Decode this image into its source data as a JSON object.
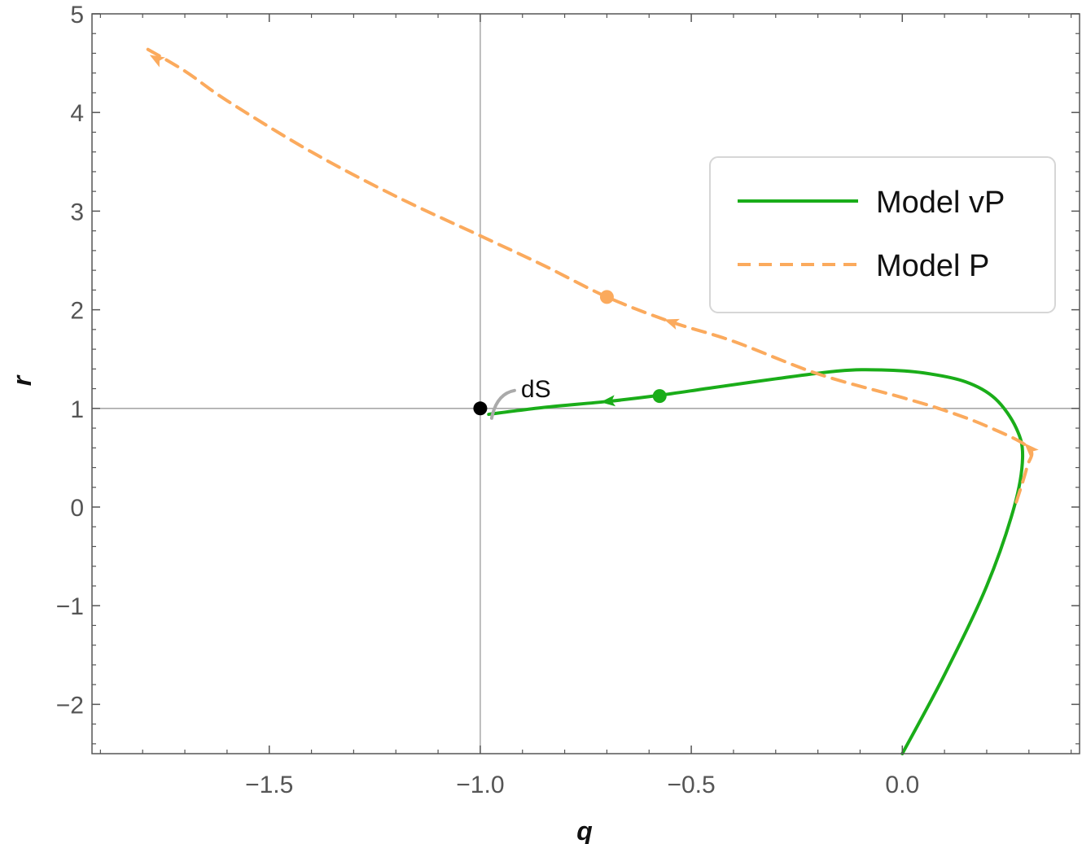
{
  "chart_data": {
    "type": "line",
    "title": "",
    "xlabel": "q",
    "ylabel": "r",
    "xlim": [
      -1.92,
      0.42
    ],
    "ylim": [
      -2.5,
      5.0
    ],
    "x_ticks": [
      -1.5,
      -1.0,
      -0.5,
      0.0
    ],
    "x_tick_labels": [
      "−1.5",
      "−1.0",
      "−0.5",
      "0.0"
    ],
    "y_ticks": [
      -2,
      -1,
      0,
      1,
      2,
      3,
      4,
      5
    ],
    "y_tick_labels": [
      "−2",
      "−1",
      "0",
      "1",
      "2",
      "3",
      "4",
      "5"
    ],
    "reference_lines": {
      "x": -1.0,
      "y": 1.0
    },
    "grid": false,
    "legend_position": "top-right",
    "series": [
      {
        "name": "Model vP",
        "color": "#1aad19",
        "style": "solid",
        "points": [
          [
            0.0,
            -2.5
          ],
          [
            0.1,
            -1.7
          ],
          [
            0.2,
            -0.8
          ],
          [
            0.265,
            0.0
          ],
          [
            0.285,
            0.5
          ],
          [
            0.27,
            0.8
          ],
          [
            0.22,
            1.1
          ],
          [
            0.15,
            1.27
          ],
          [
            0.05,
            1.36
          ],
          [
            -0.05,
            1.39
          ],
          [
            -0.15,
            1.38
          ],
          [
            -0.3,
            1.3
          ],
          [
            -0.45,
            1.21
          ],
          [
            -0.58,
            1.13
          ],
          [
            -0.7,
            1.07
          ],
          [
            -0.85,
            1.01
          ],
          [
            -0.98,
            0.94
          ]
        ],
        "marker": [
          -0.575,
          1.125
        ],
        "arrows": [
          [
            -0.7,
            1.07
          ]
        ]
      },
      {
        "name": "Model P",
        "color": "#fbaa5d",
        "style": "dashed",
        "points": [
          [
            0.27,
            0.05
          ],
          [
            0.295,
            0.4
          ],
          [
            0.3,
            0.6
          ],
          [
            0.2,
            0.82
          ],
          [
            0.1,
            0.98
          ],
          [
            0.0,
            1.11
          ],
          [
            -0.2,
            1.35
          ],
          [
            -0.4,
            1.68
          ],
          [
            -0.55,
            1.88
          ],
          [
            -0.7,
            2.13
          ],
          [
            -0.85,
            2.45
          ],
          [
            -1.0,
            2.75
          ],
          [
            -1.2,
            3.15
          ],
          [
            -1.4,
            3.6
          ],
          [
            -1.6,
            4.12
          ],
          [
            -1.7,
            4.42
          ],
          [
            -1.8,
            4.67
          ]
        ],
        "marker": [
          -0.7,
          2.13
        ],
        "arrows": [
          [
            -0.55,
            1.88
          ],
          [
            0.3,
            0.6
          ],
          [
            -1.77,
            4.55
          ]
        ]
      }
    ],
    "points": [
      {
        "label": "dS",
        "q": -1.0,
        "r": 1.0,
        "color": "#000000"
      }
    ]
  }
}
